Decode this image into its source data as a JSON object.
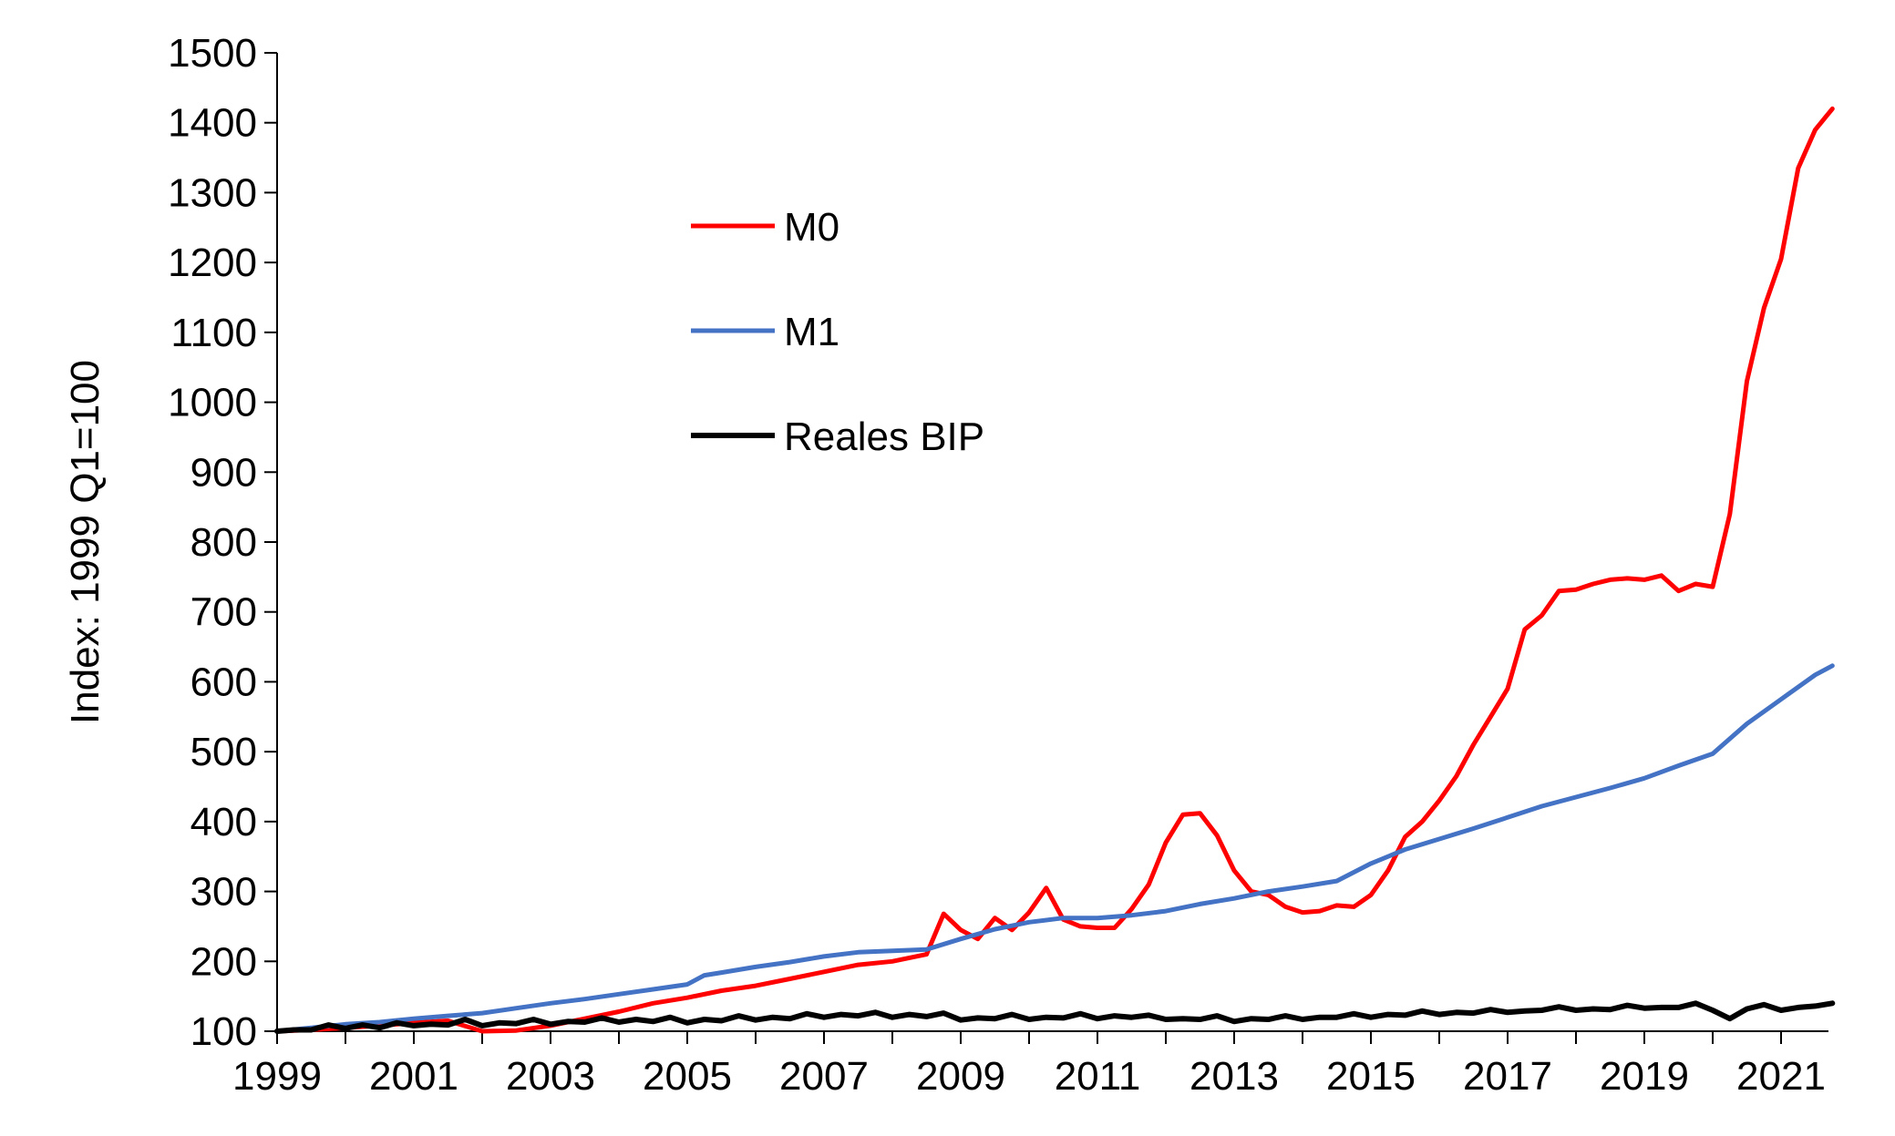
{
  "chart_data": {
    "type": "line",
    "title": "",
    "xlabel": "",
    "ylabel": "Index: 1999 Q1=100",
    "ylim": [
      100,
      1500
    ],
    "xlim": [
      1999,
      2021.75
    ],
    "y_ticks": [
      100,
      200,
      300,
      400,
      500,
      600,
      700,
      800,
      900,
      1000,
      1100,
      1200,
      1300,
      1400,
      1500
    ],
    "x_tick_labels": [
      "1999",
      "2001",
      "2003",
      "2005",
      "2007",
      "2009",
      "2011",
      "2013",
      "2015",
      "2017",
      "2019",
      "2021"
    ],
    "x_tick_values": [
      1999,
      2001,
      2003,
      2005,
      2007,
      2009,
      2011,
      2013,
      2015,
      2017,
      2019,
      2021
    ],
    "grid": false,
    "legend_position": "upper-center",
    "series": [
      {
        "name": "M0",
        "color": "#ff0000",
        "x": [
          1999.0,
          1999.5,
          2000.0,
          2000.5,
          2001.0,
          2001.5,
          2002.0,
          2002.5,
          2003.0,
          2003.5,
          2004.0,
          2004.5,
          2005.0,
          2005.5,
          2006.0,
          2006.5,
          2007.0,
          2007.5,
          2008.0,
          2008.5,
          2008.75,
          2009.0,
          2009.25,
          2009.5,
          2009.75,
          2010.0,
          2010.25,
          2010.5,
          2010.75,
          2011.0,
          2011.25,
          2011.5,
          2011.75,
          2012.0,
          2012.25,
          2012.5,
          2012.75,
          2013.0,
          2013.25,
          2013.5,
          2013.75,
          2014.0,
          2014.25,
          2014.5,
          2014.75,
          2015.0,
          2015.25,
          2015.5,
          2015.75,
          2016.0,
          2016.25,
          2016.5,
          2016.75,
          2017.0,
          2017.25,
          2017.5,
          2017.75,
          2018.0,
          2018.25,
          2018.5,
          2018.75,
          2019.0,
          2019.25,
          2019.5,
          2019.75,
          2020.0,
          2020.25,
          2020.5,
          2020.75,
          2021.0,
          2021.25,
          2021.5,
          2021.75
        ],
        "y": [
          100,
          102,
          105,
          108,
          112,
          115,
          100,
          101,
          108,
          118,
          128,
          140,
          148,
          158,
          165,
          175,
          185,
          195,
          200,
          210,
          268,
          245,
          232,
          262,
          245,
          270,
          305,
          260,
          250,
          248,
          248,
          275,
          310,
          370,
          410,
          412,
          380,
          330,
          300,
          295,
          278,
          270,
          272,
          280,
          278,
          295,
          330,
          378,
          400,
          430,
          465,
          510,
          550,
          590,
          675,
          695,
          730,
          732,
          740,
          746,
          748,
          746,
          752,
          730,
          740,
          736,
          840,
          1030,
          1135,
          1205,
          1335,
          1390,
          1420
        ]
      },
      {
        "name": "M1",
        "color": "#4472c4",
        "x": [
          1999.0,
          1999.5,
          2000.0,
          2000.5,
          2001.0,
          2001.5,
          2002.0,
          2002.5,
          2003.0,
          2003.5,
          2004.0,
          2004.5,
          2005.0,
          2005.25,
          2005.5,
          2006.0,
          2006.5,
          2007.0,
          2007.5,
          2008.0,
          2008.5,
          2009.0,
          2009.5,
          2010.0,
          2010.5,
          2011.0,
          2011.5,
          2012.0,
          2012.5,
          2013.0,
          2013.5,
          2014.0,
          2014.5,
          2015.0,
          2015.5,
          2016.0,
          2016.5,
          2017.0,
          2017.5,
          2018.0,
          2018.5,
          2019.0,
          2019.5,
          2020.0,
          2020.5,
          2021.0,
          2021.5,
          2021.75
        ],
        "y": [
          100,
          105,
          110,
          113,
          118,
          122,
          126,
          133,
          140,
          146,
          153,
          160,
          167,
          180,
          184,
          192,
          199,
          207,
          213,
          215,
          217,
          232,
          246,
          256,
          262,
          262,
          266,
          272,
          282,
          290,
          300,
          307,
          315,
          340,
          360,
          375,
          390,
          406,
          422,
          435,
          448,
          462,
          480,
          497,
          540,
          575,
          610,
          623
        ]
      },
      {
        "name": "Reales BIP",
        "color": "#000000",
        "x": [
          1999.0,
          1999.25,
          1999.5,
          1999.75,
          2000.0,
          2000.25,
          2000.5,
          2000.75,
          2001.0,
          2001.25,
          2001.5,
          2001.75,
          2002.0,
          2002.25,
          2002.5,
          2002.75,
          2003.0,
          2003.25,
          2003.5,
          2003.75,
          2004.0,
          2004.25,
          2004.5,
          2004.75,
          2005.0,
          2005.25,
          2005.5,
          2005.75,
          2006.0,
          2006.25,
          2006.5,
          2006.75,
          2007.0,
          2007.25,
          2007.5,
          2007.75,
          2008.0,
          2008.25,
          2008.5,
          2008.75,
          2009.0,
          2009.25,
          2009.5,
          2009.75,
          2010.0,
          2010.25,
          2010.5,
          2010.75,
          2011.0,
          2011.25,
          2011.5,
          2011.75,
          2012.0,
          2012.25,
          2012.5,
          2012.75,
          2013.0,
          2013.25,
          2013.5,
          2013.75,
          2014.0,
          2014.25,
          2014.5,
          2014.75,
          2015.0,
          2015.25,
          2015.5,
          2015.75,
          2016.0,
          2016.25,
          2016.5,
          2016.75,
          2017.0,
          2017.25,
          2017.5,
          2017.75,
          2018.0,
          2018.25,
          2018.5,
          2018.75,
          2019.0,
          2019.25,
          2019.5,
          2019.75,
          2020.0,
          2020.25,
          2020.5,
          2020.75,
          2021.0,
          2021.25,
          2021.5,
          2021.75
        ],
        "y": [
          100,
          102,
          102,
          109,
          104,
          109,
          105,
          112,
          108,
          110,
          109,
          117,
          108,
          112,
          111,
          117,
          110,
          114,
          113,
          119,
          113,
          117,
          114,
          120,
          112,
          117,
          115,
          122,
          116,
          120,
          118,
          125,
          120,
          124,
          122,
          127,
          120,
          124,
          121,
          126,
          116,
          119,
          118,
          124,
          117,
          120,
          119,
          125,
          118,
          122,
          120,
          123,
          117,
          118,
          117,
          122,
          114,
          118,
          117,
          122,
          117,
          120,
          120,
          125,
          120,
          124,
          123,
          129,
          124,
          127,
          126,
          131,
          127,
          129,
          130,
          135,
          130,
          132,
          131,
          137,
          133,
          134,
          134,
          140,
          130,
          118,
          132,
          138,
          130,
          134,
          136,
          140
        ]
      }
    ]
  }
}
